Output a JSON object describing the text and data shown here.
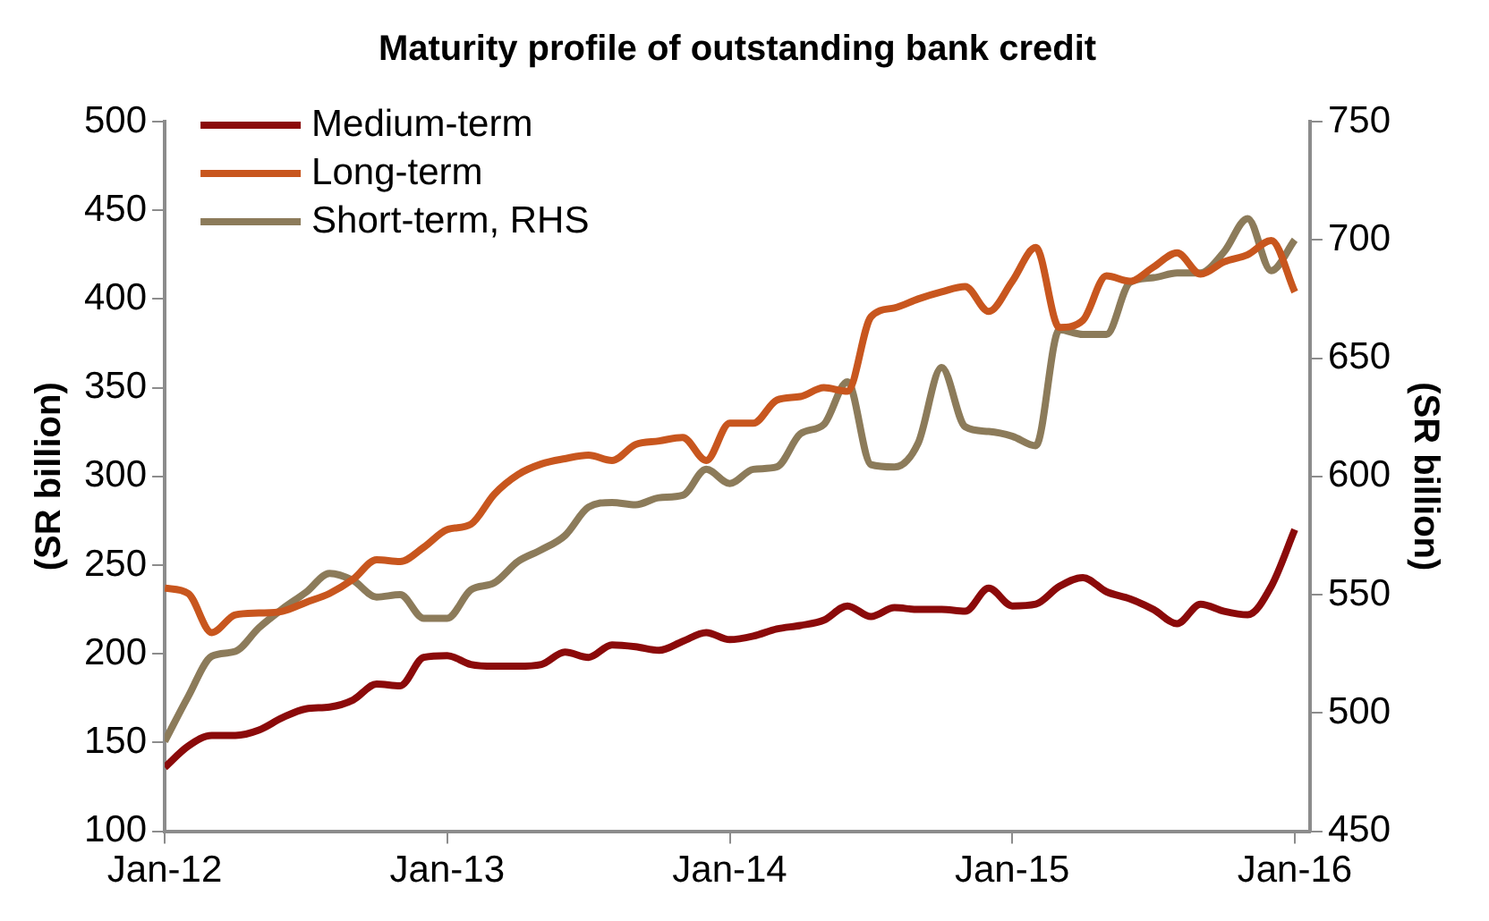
{
  "chart_data": {
    "type": "line",
    "title": "Maturity profile of outstanding bank credit",
    "ylabel": "(SR billion)",
    "y2label": "(SR billion)",
    "x": [
      "2012-01",
      "2012-02",
      "2012-03",
      "2012-04",
      "2012-05",
      "2012-06",
      "2012-07",
      "2012-08",
      "2012-09",
      "2012-10",
      "2012-11",
      "2012-12",
      "2013-01",
      "2013-02",
      "2013-03",
      "2013-04",
      "2013-05",
      "2013-06",
      "2013-07",
      "2013-08",
      "2013-09",
      "2013-10",
      "2013-11",
      "2013-12",
      "2014-01",
      "2014-02",
      "2014-03",
      "2014-04",
      "2014-05",
      "2014-06",
      "2014-07",
      "2014-08",
      "2014-09",
      "2014-10",
      "2014-11",
      "2014-12",
      "2015-01",
      "2015-02",
      "2015-03",
      "2015-04",
      "2015-05",
      "2015-06",
      "2015-07",
      "2015-08",
      "2015-09",
      "2015-10",
      "2015-11",
      "2015-12",
      "2016-01"
    ],
    "series": [
      {
        "name": "Medium-term",
        "color": "#8b0a0a",
        "values": [
          136,
          148,
          154,
          154,
          157,
          164,
          169,
          170,
          174,
          183,
          182,
          198,
          199,
          194,
          193,
          193,
          194,
          201,
          198,
          205,
          204,
          202,
          207,
          212,
          208,
          210,
          214,
          216,
          219,
          227,
          221,
          226,
          225,
          225,
          224,
          237,
          227,
          228,
          238,
          243,
          235,
          231,
          225,
          217,
          228,
          224,
          222,
          238,
          270
        ]
      },
      {
        "name": "Long-term",
        "color": "#c8561e",
        "values": [
          237,
          234,
          212,
          222,
          223,
          224,
          229,
          234,
          242,
          253,
          252,
          260,
          270,
          273,
          290,
          301,
          307,
          310,
          312,
          309,
          318,
          320,
          322,
          309,
          330,
          330,
          343,
          345,
          350,
          348,
          390,
          395,
          400,
          404,
          407,
          393,
          410,
          429,
          384,
          388,
          413,
          410,
          418,
          426,
          414,
          421,
          425,
          433,
          404
        ]
      },
      {
        "name": "Short-term, RHS",
        "color": "#8c7b5a",
        "axis": "y2",
        "values": [
          488,
          507,
          524,
          526,
          536,
          544,
          551,
          559,
          556,
          549,
          550,
          540,
          540,
          552,
          555,
          564,
          569,
          575,
          587,
          589,
          588,
          591,
          592,
          603,
          597,
          603,
          604,
          618,
          622,
          640,
          605,
          604,
          614,
          646,
          621,
          619,
          617,
          613,
          662,
          660,
          660,
          682,
          684,
          686,
          686,
          695,
          709,
          687,
          700
        ]
      }
    ],
    "xlim": [
      "2012-01",
      "2016-01-21"
    ],
    "xticks": [
      {
        "value": "2012-01",
        "label": "Jan-12"
      },
      {
        "value": "2013-01",
        "label": "Jan-13"
      },
      {
        "value": "2014-01",
        "label": "Jan-14"
      },
      {
        "value": "2015-01",
        "label": "Jan-15"
      },
      {
        "value": "2016-01",
        "label": "Jan-16"
      }
    ],
    "ylim": [
      100,
      500
    ],
    "yticks": [
      100,
      150,
      200,
      250,
      300,
      350,
      400,
      450,
      500
    ],
    "y2lim": [
      450,
      750
    ],
    "y2ticks": [
      450,
      500,
      550,
      600,
      650,
      700,
      750
    ],
    "grid": false,
    "legend": "top left"
  }
}
